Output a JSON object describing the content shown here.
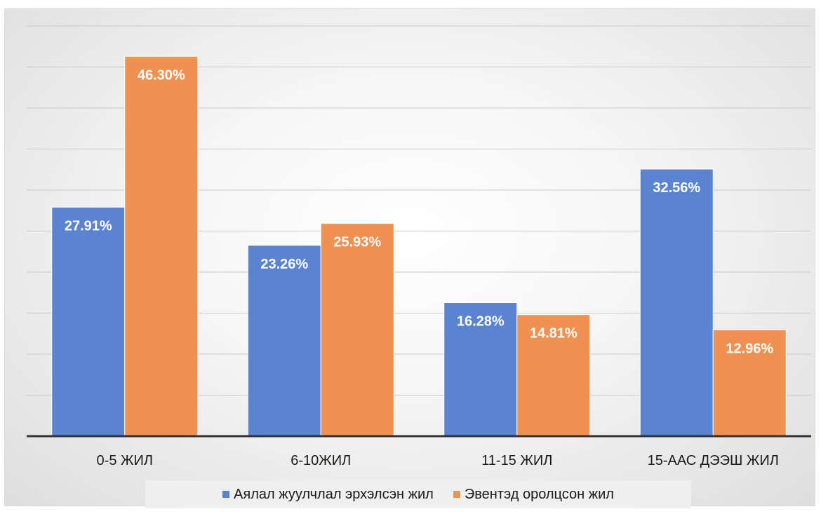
{
  "chart_data": {
    "type": "bar",
    "categories": [
      "0-5 ЖИЛ",
      "6-10ЖИЛ",
      "11-15 ЖИЛ",
      "15-ААС ДЭЭШ ЖИЛ"
    ],
    "series": [
      {
        "name": "Аялал жуулчлал эрхэлсэн жил",
        "color": "#5b84d0",
        "values": [
          27.91,
          23.26,
          16.28,
          32.56
        ],
        "labels": [
          "27.91%",
          "23.26%",
          "16.28%",
          "32.56%"
        ]
      },
      {
        "name": "Эвентэд оролцсон жил",
        "color": "#ef9150",
        "values": [
          46.3,
          25.93,
          14.81,
          12.96
        ],
        "labels": [
          "46.30%",
          "25.93%",
          "14.81%",
          "12.96%"
        ]
      }
    ],
    "ylim": [
      0,
      55
    ],
    "grid": true,
    "legend_position": "bottom",
    "title": "",
    "xlabel": "",
    "ylabel": ""
  }
}
